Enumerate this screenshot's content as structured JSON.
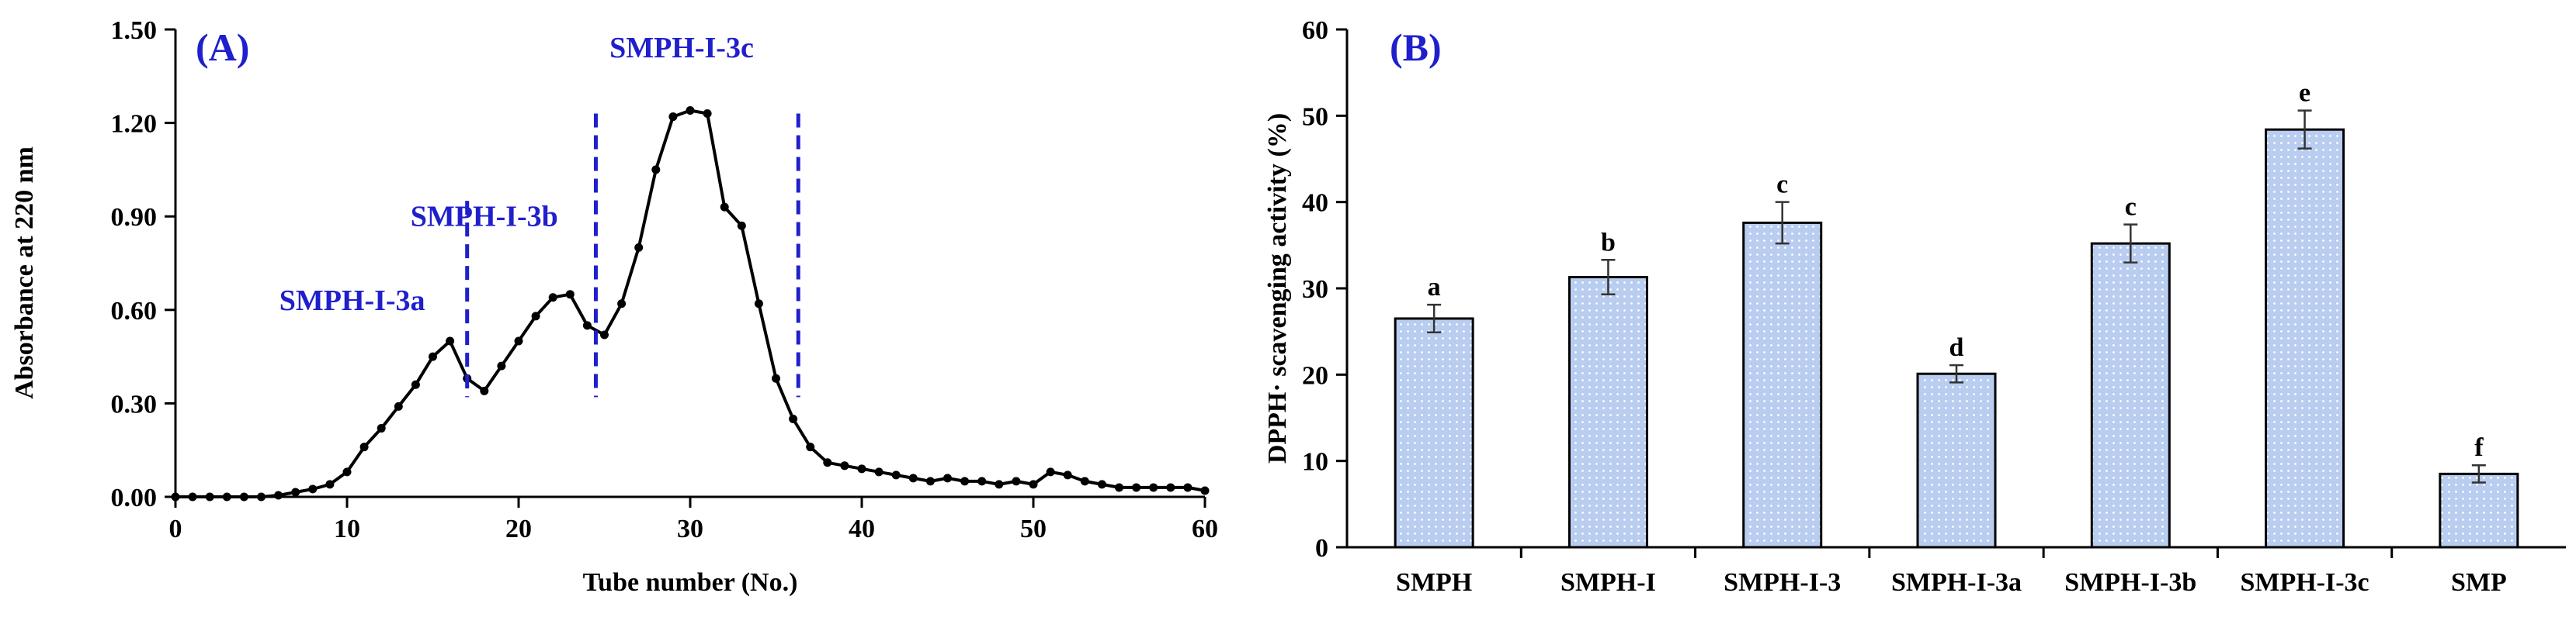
{
  "colors": {
    "line": "#000000",
    "accent_blue": "#1f1fcc",
    "bar_fill": "#b9cdf0",
    "bar_dot": "#ffffff",
    "bar_edge": "#000000"
  },
  "chart_data": [
    {
      "type": "line",
      "panel_label": "(A)",
      "title": "",
      "xlabel": "Tube number (No.)",
      "ylabel": "Absorbance at 220 nm",
      "xlim": [
        0,
        60
      ],
      "ylim": [
        0,
        1.5
      ],
      "x_ticks": [
        "0",
        "10",
        "20",
        "30",
        "40",
        "50",
        "60"
      ],
      "y_ticks": [
        "0.00",
        "0.30",
        "0.60",
        "0.90",
        "1.20",
        "1.50"
      ],
      "series": [
        {
          "name": "Absorbance",
          "x": [
            0,
            1,
            2,
            3,
            4,
            5,
            6,
            7,
            8,
            9,
            10,
            11,
            12,
            13,
            14,
            15,
            16,
            17,
            18,
            19,
            20,
            21,
            22,
            23,
            24,
            25,
            26,
            27,
            28,
            29,
            30,
            31,
            32,
            33,
            34,
            35,
            36,
            37,
            38,
            39,
            40,
            41,
            42,
            43,
            44,
            45,
            46,
            47,
            48,
            49,
            50,
            51,
            52,
            53,
            54,
            55,
            56,
            57,
            58,
            59,
            60
          ],
          "y": [
            0.0,
            0.0,
            0.0,
            0.0,
            0.0,
            0.0,
            0.005,
            0.015,
            0.025,
            0.04,
            0.08,
            0.16,
            0.22,
            0.29,
            0.36,
            0.45,
            0.5,
            0.38,
            0.34,
            0.42,
            0.5,
            0.58,
            0.64,
            0.65,
            0.55,
            0.52,
            0.62,
            0.8,
            1.05,
            1.22,
            1.24,
            1.23,
            0.93,
            0.87,
            0.62,
            0.38,
            0.25,
            0.16,
            0.11,
            0.1,
            0.09,
            0.08,
            0.07,
            0.06,
            0.05,
            0.06,
            0.05,
            0.05,
            0.04,
            0.05,
            0.04,
            0.08,
            0.07,
            0.05,
            0.04,
            0.03,
            0.03,
            0.03,
            0.03,
            0.03,
            0.02
          ]
        }
      ],
      "fraction_lines_x": [
        17,
        24.5,
        36.3
      ],
      "fraction_labels": [
        {
          "text": "SMPH-I-3a",
          "x": 10.3,
          "y": 0.6
        },
        {
          "text": "SMPH-I-3b",
          "x": 18.0,
          "y": 0.87
        },
        {
          "text": "SMPH-I-3c",
          "x": 29.5,
          "y": 1.41
        }
      ]
    },
    {
      "type": "bar",
      "panel_label": "(B)",
      "title": "",
      "xlabel": "",
      "ylabel": "DPPH· scavenging activity (%)",
      "ylim": [
        0,
        60
      ],
      "y_ticks": [
        "0",
        "10",
        "20",
        "30",
        "40",
        "50",
        "60"
      ],
      "categories": [
        "SMPH",
        "SMPH-I",
        "SMPH-I-3",
        "SMPH-I-3a",
        "SMPH-I-3b",
        "SMPH-I-3c",
        "SMP"
      ],
      "values": [
        26.5,
        31.3,
        37.6,
        20.1,
        35.2,
        48.4,
        8.5
      ],
      "errors": [
        1.6,
        2.0,
        2.4,
        1.0,
        2.2,
        2.2,
        1.0
      ],
      "significance": [
        "a",
        "b",
        "c",
        "d",
        "c",
        "e",
        "f"
      ]
    }
  ]
}
